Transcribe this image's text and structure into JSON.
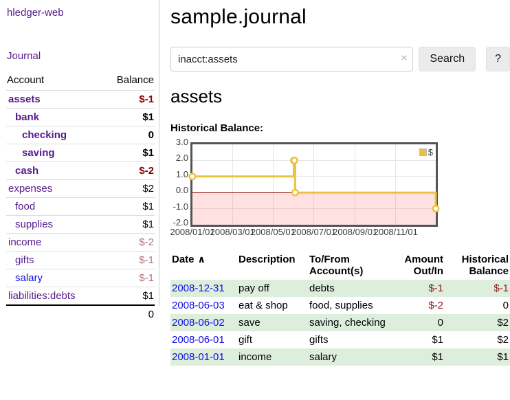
{
  "app": {
    "brand": "hledger-web",
    "journal_link": "Journal"
  },
  "sidebar": {
    "headers": {
      "account": "Account",
      "balance": "Balance"
    },
    "rows": [
      {
        "name": "assets",
        "depth": 1,
        "bold": true,
        "balance": "$-1",
        "balance_style": "neg-strong"
      },
      {
        "name": "bank",
        "depth": 2,
        "bold": true,
        "balance": "$1",
        "balance_style": "pos-strong"
      },
      {
        "name": "checking",
        "depth": 3,
        "bold": true,
        "balance": "0",
        "balance_style": "pos-strong"
      },
      {
        "name": "saving",
        "depth": 3,
        "bold": true,
        "balance": "$1",
        "balance_style": "pos-strong"
      },
      {
        "name": "cash",
        "depth": 2,
        "bold": true,
        "balance": "$-2",
        "balance_style": "neg-strong"
      },
      {
        "name": "expenses",
        "depth": 1,
        "bold": false,
        "balance": "$2",
        "balance_style": "pos"
      },
      {
        "name": "food",
        "depth": 2,
        "bold": false,
        "balance": "$1",
        "balance_style": "pos"
      },
      {
        "name": "supplies",
        "depth": 2,
        "bold": false,
        "balance": "$1",
        "balance_style": "pos"
      },
      {
        "name": "income",
        "depth": 1,
        "bold": false,
        "balance": "$-2",
        "balance_style": "neg-soft"
      },
      {
        "name": "gifts",
        "depth": 2,
        "bold": false,
        "balance": "$-1",
        "balance_style": "neg-soft"
      },
      {
        "name": "salary",
        "depth": 2,
        "bold": false,
        "balance": "$-1",
        "balance_style": "neg-soft",
        "link_style": "unvisited"
      },
      {
        "name": "liabilities:debts",
        "depth": 1,
        "bold": false,
        "balance": "$1",
        "balance_style": "pos"
      }
    ],
    "total": "0"
  },
  "header": {
    "title": "sample.journal"
  },
  "search": {
    "query": "inacct:assets",
    "clear_icon": "×",
    "button_label": "Search",
    "help_label": "?"
  },
  "account_page": {
    "heading": "assets",
    "chart_label": "Historical Balance:"
  },
  "chart_data": {
    "type": "line",
    "title": "Historical Balance:",
    "step": true,
    "series": [
      {
        "name": "$",
        "color": "#EDC240",
        "points": [
          [
            "2008-01-01",
            1
          ],
          [
            "2008-06-01",
            2
          ],
          [
            "2008-06-02",
            2
          ],
          [
            "2008-06-03",
            0
          ],
          [
            "2008-12-31",
            -1
          ]
        ]
      }
    ],
    "x_ticks": [
      "2008/01/01",
      "2008/03/01",
      "2008/05/01",
      "2008/07/01",
      "2008/09/01",
      "2008/11/01"
    ],
    "y_ticks": [
      "3.0",
      "2.0",
      "1.0",
      "0.0",
      "-1.0",
      "-2.0"
    ],
    "ylim": [
      -2,
      3
    ],
    "xlim": [
      "2008-01-01",
      "2008-12-31"
    ],
    "grid": true,
    "legend_position": "top-right",
    "negative_region_shaded": true,
    "zero_line_color": "#8b0000"
  },
  "register": {
    "headers": {
      "date": "Date",
      "sort_indicator": "∧",
      "description": "Description",
      "accounts_line1": "To/From",
      "accounts_line2": "Account(s)",
      "amount_line1": "Amount",
      "amount_line2": "Out/In",
      "balance_line1": "Historical",
      "balance_line2": "Balance"
    },
    "rows": [
      {
        "date": "2008-12-31",
        "description": "pay off",
        "accounts": "debts",
        "amount": "$-1",
        "amount_style": "neg",
        "balance": "$-1",
        "balance_style": "neg"
      },
      {
        "date": "2008-06-03",
        "description": "eat & shop",
        "accounts": "food, supplies",
        "amount": "$-2",
        "amount_style": "neg",
        "balance": "0",
        "balance_style": "pos"
      },
      {
        "date": "2008-06-02",
        "description": "save",
        "accounts": "saving, checking",
        "amount": "0",
        "amount_style": "pos",
        "balance": "$2",
        "balance_style": "pos"
      },
      {
        "date": "2008-06-01",
        "description": "gift",
        "accounts": "gifts",
        "amount": "$1",
        "amount_style": "pos",
        "balance": "$2",
        "balance_style": "pos"
      },
      {
        "date": "2008-01-01",
        "description": "income",
        "accounts": "salary",
        "amount": "$1",
        "amount_style": "pos",
        "balance": "$1",
        "balance_style": "pos"
      }
    ]
  },
  "colors": {
    "accent_purple": "#551A8B",
    "link_blue": "#0f0fe8",
    "negative_strong": "#8b0000",
    "negative_soft": "#b47070",
    "row_green": "#deeedd",
    "series_yellow": "#EDC240",
    "chart_border": "#545454",
    "zero_line": "#8b0000"
  }
}
